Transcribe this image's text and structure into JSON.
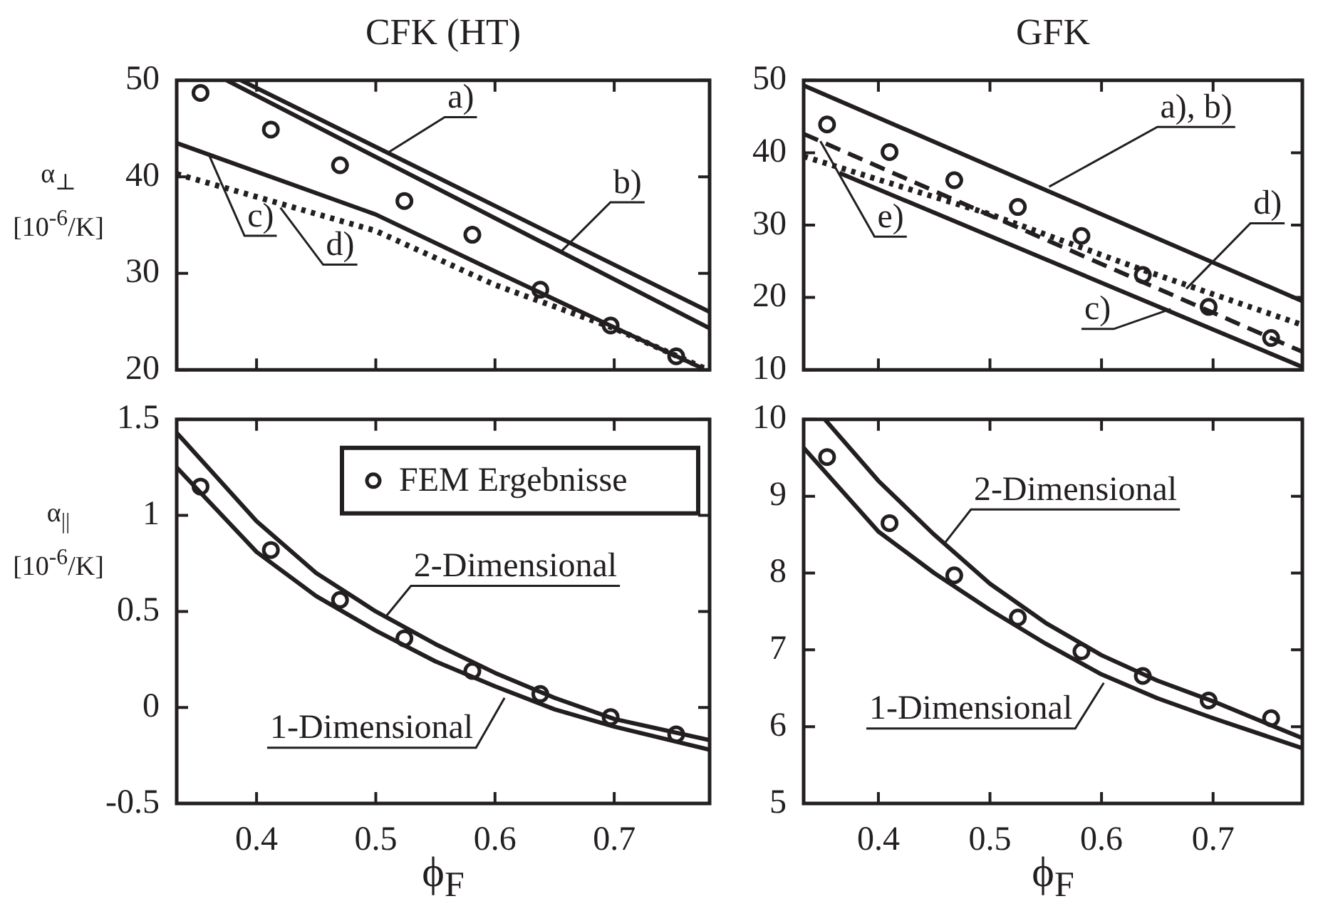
{
  "chart_data": [
    {
      "type": "line",
      "title": "CFK (HT)",
      "ylabel": "α$_{⊥}$ [10$^{-6}$/K]",
      "xlim": [
        0.333,
        0.78
      ],
      "xticks": [
        0.4,
        0.5,
        0.6,
        0.7
      ],
      "ylim": [
        20,
        50
      ],
      "yticks": [
        20,
        30,
        40,
        50
      ],
      "tick_labels": "y",
      "series": [
        {
          "type": "line",
          "color": "#231f20",
          "line_style": "solid",
          "marker": "none",
          "x": [
            0.387,
            0.78
          ],
          "values": [
            50,
            26
          ]
        },
        {
          "type": "line",
          "color": "#231f20",
          "line_style": "solid",
          "marker": "none",
          "x": [
            0.375,
            0.78
          ],
          "values": [
            50,
            24.3
          ]
        },
        {
          "type": "line",
          "color": "#231f20",
          "line_style": "solid",
          "marker": "none",
          "x": [
            0.333,
            0.5,
            0.6,
            0.7,
            0.775
          ],
          "values": [
            43.5,
            36.1,
            30.2,
            24.4,
            20.1
          ]
        },
        {
          "type": "line",
          "color": "#231f20",
          "line_style": "dotted",
          "marker": "none",
          "x": [
            0.333,
            0.364,
            0.5,
            0.6,
            0.7,
            0.775
          ],
          "values": [
            40.3,
            39.2,
            34.4,
            28.8,
            24.3,
            20.2
          ]
        },
        {
          "type": "scatter",
          "color": "#231f20",
          "marker": "circle",
          "x": [
            0.353,
            0.412,
            0.47,
            0.524,
            0.581,
            0.638,
            0.697,
            0.752
          ],
          "values": [
            48.7,
            44.9,
            41.2,
            37.5,
            34.0,
            28.3,
            24.6,
            21.4
          ]
        }
      ],
      "annotations": [
        {
          "text": "a)",
          "x": 0.51,
          "y": 42.5
        },
        {
          "text": "b)",
          "x": 0.655,
          "y": 32.2
        },
        {
          "text": "c)",
          "x": 0.36,
          "y": 42.3
        },
        {
          "text": "d)",
          "x": 0.42,
          "y": 36.8
        }
      ]
    },
    {
      "type": "line",
      "title": "GFK",
      "xlim": [
        0.333,
        0.78
      ],
      "xticks": [
        0.4,
        0.5,
        0.6,
        0.7
      ],
      "ylim": [
        10,
        50
      ],
      "yticks": [
        10,
        20,
        30,
        40,
        50
      ],
      "tick_labels": "y",
      "series": [
        {
          "type": "line",
          "color": "#231f20",
          "line_style": "solid",
          "marker": "none",
          "x": [
            0.333,
            0.78
          ],
          "values": [
            49.3,
            19.5
          ]
        },
        {
          "type": "line",
          "color": "#231f20",
          "line_style": "solid",
          "marker": "none",
          "x": [
            0.365,
            0.78
          ],
          "values": [
            37.2,
            10.4
          ]
        },
        {
          "type": "line",
          "color": "#231f20",
          "line_style": "dashed",
          "marker": "none",
          "x": [
            0.333,
            0.78
          ],
          "values": [
            42.6,
            12.5
          ]
        },
        {
          "type": "line",
          "color": "#231f20",
          "line_style": "dotted",
          "marker": "none",
          "x": [
            0.333,
            0.5,
            0.637,
            0.78
          ],
          "values": [
            39.5,
            31.5,
            23.8,
            16.2
          ]
        },
        {
          "type": "scatter",
          "color": "#231f20",
          "marker": "circle",
          "x": [
            0.354,
            0.41,
            0.468,
            0.525,
            0.582,
            0.637,
            0.696,
            0.752
          ],
          "values": [
            43.9,
            40.1,
            36.2,
            32.5,
            28.5,
            23.1,
            18.7,
            14.4
          ]
        }
      ],
      "annotations": [
        {
          "text": "a), b)",
          "x": 0.553,
          "y": 35.3
        },
        {
          "text": "d)",
          "x": 0.676,
          "y": 21.2
        },
        {
          "text": "c)",
          "x": 0.662,
          "y": 18.4
        },
        {
          "text": "e)",
          "x": 0.348,
          "y": 41.6
        }
      ]
    },
    {
      "type": "line",
      "ylabel": "α$_{||}$ [10$^{-6}$/K]",
      "xlabel": "ϕ$_{F}$",
      "xlim": [
        0.333,
        0.78
      ],
      "xticks": [
        0.4,
        0.5,
        0.6,
        0.7
      ],
      "ylim": [
        -0.5,
        1.5
      ],
      "yticks": [
        -0.5,
        0,
        0.5,
        1,
        1.5
      ],
      "legend": "top right",
      "series": [
        {
          "type": "line",
          "color": "#231f20",
          "line_style": "solid",
          "marker": "none",
          "x": [
            0.333,
            0.4,
            0.45,
            0.5,
            0.55,
            0.6,
            0.65,
            0.7,
            0.78
          ],
          "values": [
            1.43,
            0.97,
            0.7,
            0.5,
            0.33,
            0.18,
            0.05,
            -0.06,
            -0.17
          ]
        },
        {
          "type": "line",
          "color": "#231f20",
          "line_style": "solid",
          "marker": "none",
          "x": [
            0.333,
            0.4,
            0.45,
            0.5,
            0.55,
            0.6,
            0.65,
            0.7,
            0.78
          ],
          "values": [
            1.25,
            0.81,
            0.58,
            0.4,
            0.24,
            0.11,
            -0.01,
            -0.1,
            -0.22
          ]
        },
        {
          "type": "scatter",
          "name": "FEM Ergebnisse",
          "color": "#231f20",
          "marker": "circle",
          "x": [
            0.353,
            0.412,
            0.47,
            0.524,
            0.581,
            0.638,
            0.697,
            0.752
          ],
          "values": [
            1.15,
            0.82,
            0.56,
            0.36,
            0.19,
            0.07,
            -0.05,
            -0.14
          ]
        }
      ],
      "annotations": [
        {
          "text": "2-Dimensional",
          "x": 0.508,
          "y": 0.47
        },
        {
          "text": "1-Dimensional",
          "x": 0.608,
          "y": 0.05
        }
      ]
    },
    {
      "type": "line",
      "xlabel": "ϕ$_{F}$",
      "xlim": [
        0.333,
        0.78
      ],
      "xticks": [
        0.4,
        0.5,
        0.6,
        0.7
      ],
      "ylim": [
        5,
        10
      ],
      "yticks": [
        5,
        6,
        7,
        8,
        9,
        10
      ],
      "series": [
        {
          "type": "line",
          "color": "#231f20",
          "line_style": "solid",
          "marker": "none",
          "x": [
            0.352,
            0.4,
            0.45,
            0.5,
            0.55,
            0.6,
            0.65,
            0.7,
            0.78
          ],
          "values": [
            10,
            9.2,
            8.5,
            7.86,
            7.35,
            6.93,
            6.6,
            6.33,
            5.85
          ]
        },
        {
          "type": "line",
          "color": "#231f20",
          "line_style": "solid",
          "marker": "none",
          "x": [
            0.333,
            0.4,
            0.45,
            0.5,
            0.55,
            0.6,
            0.65,
            0.7,
            0.78
          ],
          "values": [
            9.63,
            8.54,
            8.0,
            7.52,
            7.08,
            6.68,
            6.37,
            6.11,
            5.72
          ]
        },
        {
          "type": "scatter",
          "color": "#231f20",
          "marker": "circle",
          "x": [
            0.354,
            0.41,
            0.468,
            0.525,
            0.582,
            0.637,
            0.696,
            0.752
          ],
          "values": [
            9.51,
            8.65,
            7.97,
            7.42,
            6.98,
            6.66,
            6.34,
            6.11
          ]
        }
      ],
      "annotations": [
        {
          "text": "2-Dimensional",
          "x": 0.46,
          "y": 8.4
        },
        {
          "text": "1-Dimensional",
          "x": 0.602,
          "y": 6.57
        }
      ]
    }
  ]
}
